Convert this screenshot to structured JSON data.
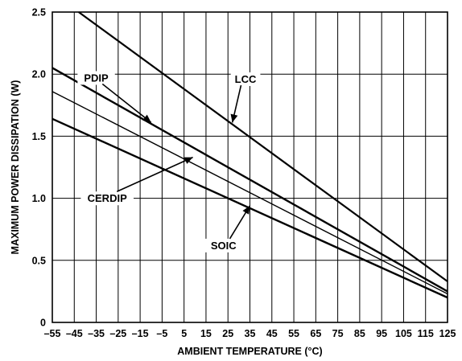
{
  "chart_data": {
    "type": "line",
    "title": "",
    "xlabel": "AMBIENT TEMPERATURE (°C)",
    "ylabel": "MAXIMUM POWER DISSIPATION (W)",
    "xlim": [
      -55,
      125
    ],
    "ylim": [
      0,
      2.5
    ],
    "x_ticks": [
      -55,
      -45,
      -35,
      -25,
      -15,
      -5,
      5,
      15,
      25,
      35,
      45,
      55,
      65,
      75,
      85,
      95,
      105,
      115,
      125
    ],
    "x_tick_labels": [
      "–55",
      "–45",
      "–35",
      "–25",
      "–15",
      "–5",
      "5",
      "15",
      "25",
      "35",
      "45",
      "55",
      "65",
      "75",
      "85",
      "95",
      "105",
      "115",
      "125"
    ],
    "y_ticks": [
      0,
      0.5,
      1.0,
      1.5,
      2.0,
      2.5
    ],
    "y_tick_labels": [
      "0",
      "0.5",
      "1.0",
      "1.5",
      "2.0",
      "2.5"
    ],
    "grid": true,
    "series": [
      {
        "name": "LCC",
        "x": [
          -43,
          125
        ],
        "y": [
          2.5,
          0.33
        ],
        "label_x": 33,
        "label_y": 1.93,
        "arrow_to": [
          27,
          1.61
        ]
      },
      {
        "name": "PDIP",
        "x": [
          -55,
          125
        ],
        "y": [
          2.05,
          0.25
        ],
        "label_x": -35,
        "label_y": 1.94,
        "arrow_to": [
          -10,
          1.61
        ]
      },
      {
        "name": "CERDIP",
        "x": [
          -55,
          125
        ],
        "y": [
          1.86,
          0.23
        ],
        "label_x": -30,
        "label_y": 0.97,
        "arrow_to": [
          9,
          1.33
        ]
      },
      {
        "name": "SOIC",
        "x": [
          -55,
          125
        ],
        "y": [
          1.64,
          0.2
        ],
        "label_x": 23,
        "label_y": 0.59,
        "arrow_to": [
          35,
          0.94
        ]
      }
    ]
  }
}
